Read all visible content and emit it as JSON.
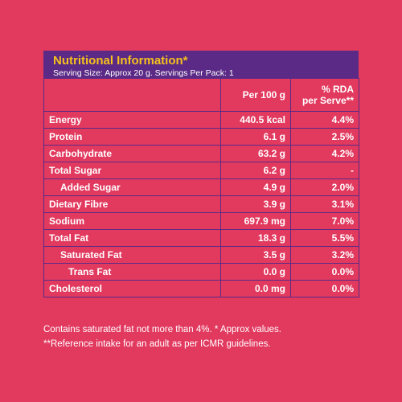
{
  "header": {
    "title": "Nutritional Information*",
    "serving": "Serving Size: Approx 20 g. Servings Per Pack: 1"
  },
  "table": {
    "columns": [
      "",
      "Per 100 g",
      "% RDA per Serve**"
    ],
    "rows": [
      {
        "nutrient": "Energy",
        "per100": "440.5 kcal",
        "rda": "4.4%"
      },
      {
        "nutrient": "Protein",
        "per100": "6.1 g",
        "rda": "2.5%"
      },
      {
        "nutrient": "Carbohydrate",
        "per100": "63.2 g",
        "rda": "4.2%"
      },
      {
        "nutrient": "Total Sugar",
        "per100": "6.2 g",
        "rda": "-"
      },
      {
        "nutrient": "Added Sugar",
        "per100": "4.9 g",
        "rda": "2.0%"
      },
      {
        "nutrient": "Dietary Fibre",
        "per100": "3.9 g",
        "rda": "3.1%"
      },
      {
        "nutrient": "Sodium",
        "per100": "697.9 mg",
        "rda": "7.0%"
      },
      {
        "nutrient": "Total Fat",
        "per100": "18.3 g",
        "rda": "5.5%"
      },
      {
        "nutrient": "Saturated Fat",
        "per100": "3.5 g",
        "rda": "3.2%"
      },
      {
        "nutrient": "Trans Fat",
        "per100": "0.0 g",
        "rda": "0.0%"
      },
      {
        "nutrient": "Cholesterol",
        "per100": "0.0 mg",
        "rda": "0.0%"
      }
    ]
  },
  "footnotes": {
    "line1": "Contains saturated fat not more than 4%. * Approx values.",
    "line2": "**Reference intake for an adult as per ICMR guidelines."
  },
  "colors": {
    "background": "#e2395f",
    "accent": "#5a2a86",
    "title": "#f6c21b",
    "text": "#ffffff"
  }
}
